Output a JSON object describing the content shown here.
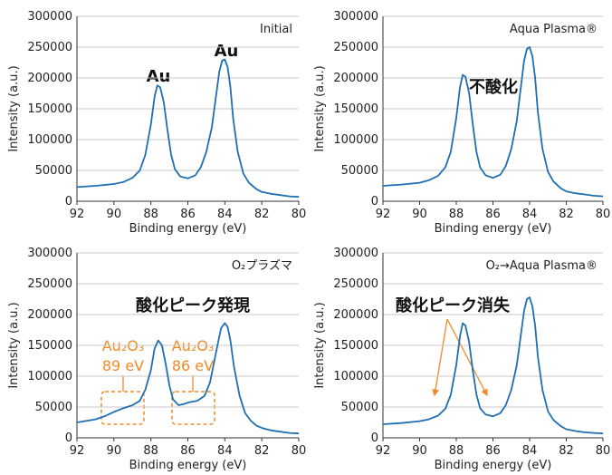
{
  "chart_data": [
    {
      "type": "line",
      "label": "Initial",
      "xlabel": "Binding energy (eV)",
      "ylabel": "Intensity (a.u.)",
      "xlim": [
        92,
        80
      ],
      "ylim": [
        0,
        300000
      ],
      "xticks": [
        "92",
        "90",
        "88",
        "86",
        "84",
        "82",
        "80"
      ],
      "yticks": [
        "0",
        "50000",
        "100000",
        "150000",
        "200000",
        "250000",
        "300000"
      ],
      "grid": "horizontal",
      "color": "#1f6fb2",
      "series": [
        {
          "x": [
            92,
            91,
            90,
            89.5,
            89,
            88.6,
            88.3,
            88.0,
            87.8,
            87.65,
            87.5,
            87.3,
            87.1,
            86.9,
            86.7,
            86.4,
            86.0,
            85.6,
            85.3,
            85.0,
            84.7,
            84.5,
            84.3,
            84.15,
            84.0,
            83.85,
            83.7,
            83.55,
            83.3,
            83.0,
            82.7,
            82.3,
            82.0,
            81.5,
            81.0,
            80.5,
            80
          ],
          "y": [
            23000,
            25000,
            28000,
            31000,
            38000,
            50000,
            75000,
            125000,
            170000,
            188000,
            185000,
            160000,
            115000,
            75000,
            52000,
            40000,
            37000,
            42000,
            55000,
            80000,
            120000,
            165000,
            210000,
            228000,
            230000,
            218000,
            185000,
            135000,
            80000,
            45000,
            30000,
            20000,
            15000,
            12000,
            10000,
            8000,
            7000
          ]
        }
      ],
      "annotations": [
        {
          "text": "Au",
          "x": 87.6,
          "y": 198000
        },
        {
          "text": "Au",
          "x": 83.9,
          "y": 238000
        }
      ]
    },
    {
      "type": "line",
      "label": "Aqua Plasma®",
      "xlabel": "Binding energy (eV)",
      "ylabel": "Intensity (a.u.)",
      "xlim": [
        92,
        80
      ],
      "ylim": [
        0,
        300000
      ],
      "xticks": [
        "92",
        "90",
        "88",
        "86",
        "84",
        "82",
        "80"
      ],
      "yticks": [
        "0",
        "50000",
        "100000",
        "150000",
        "200000",
        "250000",
        "300000"
      ],
      "grid": "horizontal",
      "color": "#1f6fb2",
      "series": [
        {
          "x": [
            92,
            91,
            90,
            89.5,
            89,
            88.6,
            88.3,
            88.0,
            87.8,
            87.65,
            87.5,
            87.3,
            87.1,
            86.9,
            86.7,
            86.4,
            86.0,
            85.6,
            85.3,
            85.0,
            84.7,
            84.5,
            84.3,
            84.15,
            84.0,
            83.85,
            83.7,
            83.55,
            83.3,
            83.0,
            82.7,
            82.3,
            82.0,
            81.5,
            81.0,
            80.5,
            80
          ],
          "y": [
            25000,
            27000,
            30000,
            34000,
            41000,
            55000,
            80000,
            135000,
            185000,
            205000,
            202000,
            175000,
            125000,
            80000,
            55000,
            42000,
            38000,
            43000,
            57000,
            85000,
            130000,
            180000,
            228000,
            247000,
            250000,
            236000,
            200000,
            145000,
            85000,
            48000,
            32000,
            21000,
            16000,
            13000,
            11000,
            9000,
            8000
          ]
        }
      ],
      "annotations": [
        {
          "text": "不酸化",
          "x": 86.2,
          "y": 222000
        }
      ]
    },
    {
      "type": "line",
      "label": "O₂プラズマ",
      "xlabel": "Binding energy (eV)",
      "ylabel": "Intensity (a.u.)",
      "xlim": [
        92,
        80
      ],
      "ylim": [
        0,
        300000
      ],
      "xticks": [
        "92",
        "90",
        "88",
        "86",
        "84",
        "82",
        "80"
      ],
      "yticks": [
        "0",
        "50000",
        "100000",
        "150000",
        "200000",
        "250000",
        "300000"
      ],
      "grid": "horizontal",
      "color": "#1f6fb2",
      "series": [
        {
          "x": [
            92,
            91,
            90.5,
            90,
            89.5,
            89,
            88.6,
            88.3,
            88.0,
            87.8,
            87.6,
            87.4,
            87.2,
            87.0,
            86.8,
            86.5,
            86.2,
            85.9,
            85.5,
            85.1,
            84.8,
            84.6,
            84.4,
            84.2,
            84.0,
            83.85,
            83.7,
            83.5,
            83.2,
            82.9,
            82.6,
            82.3,
            82.0,
            81.5,
            81.0,
            80.5,
            80
          ],
          "y": [
            25000,
            30000,
            35000,
            42000,
            48000,
            53000,
            60000,
            78000,
            110000,
            145000,
            158000,
            150000,
            120000,
            85000,
            62000,
            53000,
            55000,
            58000,
            60000,
            68000,
            90000,
            120000,
            150000,
            178000,
            186000,
            180000,
            158000,
            115000,
            68000,
            40000,
            28000,
            20000,
            16000,
            12000,
            10000,
            8000,
            7000
          ]
        }
      ],
      "annotations": [
        {
          "text": "酸化ピーク発現",
          "x": 86,
          "y": 210000
        },
        {
          "text": "Au₂O₃",
          "x": 89.3,
          "y": 148000
        },
        {
          "text": "89 eV",
          "x": 89.3,
          "y": 112000
        },
        {
          "text": "Au₂O₃",
          "x": 85.1,
          "y": 148000
        },
        {
          "text": "86 eV",
          "x": 85.1,
          "y": 112000
        }
      ]
    },
    {
      "type": "line",
      "label": "O₂→Aqua Plasma®",
      "xlabel": "Binding energy (eV)",
      "ylabel": "Intensity (a.u.)",
      "xlim": [
        92,
        80
      ],
      "ylim": [
        0,
        300000
      ],
      "xticks": [
        "92",
        "90",
        "88",
        "86",
        "84",
        "82",
        "80"
      ],
      "yticks": [
        "0",
        "50000",
        "100000",
        "150000",
        "200000",
        "250000",
        "300000"
      ],
      "grid": "horizontal",
      "color": "#1f6fb2",
      "series": [
        {
          "x": [
            92,
            91,
            90,
            89.5,
            89,
            88.6,
            88.3,
            88.0,
            87.8,
            87.65,
            87.5,
            87.3,
            87.1,
            86.9,
            86.7,
            86.4,
            86.0,
            85.6,
            85.3,
            85.0,
            84.7,
            84.5,
            84.3,
            84.15,
            84.0,
            83.85,
            83.7,
            83.55,
            83.3,
            83.0,
            82.7,
            82.3,
            82.0,
            81.5,
            81.0,
            80.5,
            80
          ],
          "y": [
            22000,
            24000,
            27000,
            30000,
            36000,
            47000,
            70000,
            118000,
            165000,
            186000,
            182000,
            155000,
            110000,
            70000,
            48000,
            38000,
            35000,
            40000,
            53000,
            78000,
            118000,
            162000,
            206000,
            225000,
            228000,
            214000,
            182000,
            132000,
            78000,
            43000,
            29000,
            19000,
            14000,
            11000,
            9000,
            8000,
            7000
          ]
        }
      ],
      "annotations": [
        {
          "text": "酸化ピーク消失",
          "x": 87.9,
          "y": 210000
        }
      ]
    }
  ]
}
